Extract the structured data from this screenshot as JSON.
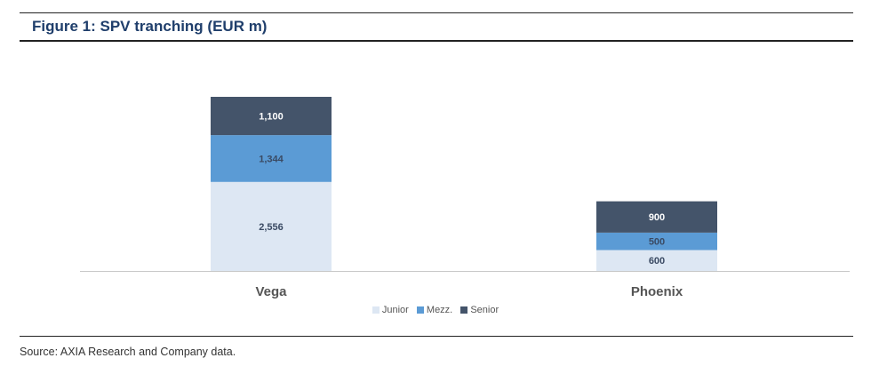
{
  "figure": {
    "title": "Figure 1: SPV tranching (EUR m)",
    "source": "Source: AXIA Research and Company data."
  },
  "chart_data": {
    "type": "bar",
    "stacked": true,
    "title": "Figure 1: SPV tranching (EUR m)",
    "categories": [
      "Vega",
      "Phoenix"
    ],
    "series": [
      {
        "name": "Junior",
        "values": [
          2556,
          600
        ],
        "labels": [
          "2,556",
          "600"
        ],
        "color": "#dde7f3",
        "label_color": "#3a4a63"
      },
      {
        "name": "Mezz.",
        "values": [
          1344,
          500
        ],
        "labels": [
          "1,344",
          "500"
        ],
        "color": "#5b9bd5",
        "label_color": "#3a4a63"
      },
      {
        "name": "Senior",
        "values": [
          1100,
          900
        ],
        "labels": [
          "1,100",
          "900"
        ],
        "color": "#44546a",
        "label_color": "#ffffff"
      }
    ],
    "ylim": [
      0,
      5000
    ],
    "grid": false,
    "legend": "bottom"
  }
}
